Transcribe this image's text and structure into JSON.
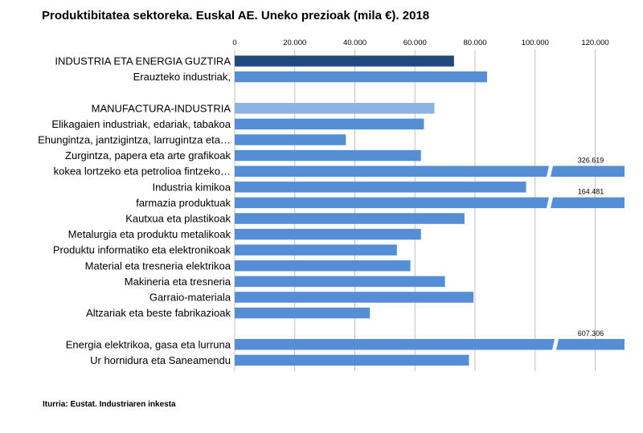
{
  "title": "Produktibitatea  sektoreka.  Euskal AE. Uneko prezioak (mila €).  2018",
  "source": "Iturria: Eustat. Industriaren inkesta",
  "colors": {
    "total": "#1f497d",
    "manufacturing_total": "#8db3e2",
    "sector": "#558ed5",
    "grid": "#c0c0c0"
  },
  "chart_data": {
    "type": "bar",
    "orientation": "horizontal",
    "x_axis": {
      "range": [
        0,
        130000
      ],
      "ticks": [
        0,
        20000,
        40000,
        60000,
        80000,
        100000,
        120000
      ],
      "tick_labels": [
        "0",
        "20.000",
        "40.000",
        "60.000",
        "80.000",
        "100.000",
        "120.000"
      ],
      "position": "top",
      "gridlines": true
    },
    "legend": "none",
    "rows": [
      {
        "label": "INDUSTRIA ETA ENERGIA GUZTIRA",
        "value": 73000,
        "color_role": "total"
      },
      {
        "label": "Erauzteko industriak,",
        "value": 84000,
        "color_role": "sector"
      },
      {
        "label": "",
        "value": null
      },
      {
        "label": "MANUFACTURA-INDUSTRIA",
        "value": 66500,
        "color_role": "manufacturing_total"
      },
      {
        "label": "Elikagaien industriak, edariak, tabakoa",
        "value": 63000,
        "color_role": "sector"
      },
      {
        "label": "Ehungintza, jantzigintza, larrugintza eta…",
        "value": 37000,
        "color_role": "sector"
      },
      {
        "label": "Zurgintza, papera eta arte grafikoak",
        "value": 62000,
        "color_role": "sector"
      },
      {
        "label": "kokea lortzeko eta petrolioa fintzeko…",
        "value": 326619,
        "data_label": "326.619",
        "color_role": "sector",
        "truncated": true
      },
      {
        "label": "Industria kimikoa",
        "value": 97000,
        "color_role": "sector"
      },
      {
        "label": "farmazia produktuak",
        "value": 164481,
        "data_label": "164.481",
        "color_role": "sector",
        "truncated": true
      },
      {
        "label": "Kautxua eta plastikoak",
        "value": 76500,
        "color_role": "sector"
      },
      {
        "label": "Metalurgia eta produktu metalikoak",
        "value": 62000,
        "color_role": "sector"
      },
      {
        "label": "Produktu informatiko eta elektronikoak",
        "value": 54000,
        "color_role": "sector"
      },
      {
        "label": "Material eta tresneria elektrikoa",
        "value": 58500,
        "color_role": "sector"
      },
      {
        "label": "Makineria eta tresneria",
        "value": 70000,
        "color_role": "sector"
      },
      {
        "label": "Garraio-materiala",
        "value": 79500,
        "color_role": "sector"
      },
      {
        "label": "Altzariak eta beste fabrikazioak",
        "value": 45000,
        "color_role": "sector"
      },
      {
        "label": "",
        "value": null
      },
      {
        "label": "Energia elektrikoa, gasa eta lurruna",
        "value": 607306,
        "data_label": "607.306",
        "color_role": "sector",
        "truncated": true
      },
      {
        "label": "Ur hornidura eta Saneamendu",
        "value": 78000,
        "color_role": "sector"
      }
    ]
  }
}
